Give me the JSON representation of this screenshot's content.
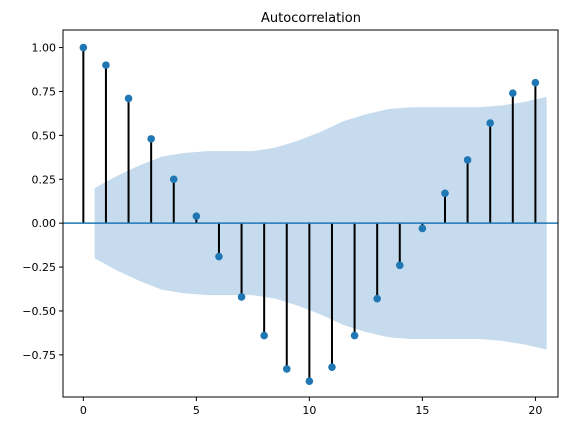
{
  "chart_data": {
    "type": "stem",
    "title": "Autocorrelation",
    "xlabel": "",
    "ylabel": "",
    "xlim": [
      -0.9,
      21.0
    ],
    "ylim": [
      -0.99,
      1.1
    ],
    "x_ticks": [
      0,
      5,
      10,
      15,
      20
    ],
    "y_ticks": [
      1.0,
      0.75,
      0.5,
      0.25,
      0.0,
      -0.25,
      -0.5,
      -0.75
    ],
    "y_tick_labels": [
      "1.00",
      "0.75",
      "0.50",
      "0.25",
      "0.00",
      "−0.25",
      "−0.50",
      "−0.75"
    ],
    "lags": [
      0,
      1,
      2,
      3,
      4,
      5,
      6,
      7,
      8,
      9,
      10,
      11,
      12,
      13,
      14,
      15,
      16,
      17,
      18,
      19,
      20
    ],
    "values": [
      1.0,
      0.9,
      0.71,
      0.48,
      0.25,
      0.04,
      -0.19,
      -0.42,
      -0.64,
      -0.83,
      -0.9,
      -0.82,
      -0.64,
      -0.43,
      -0.24,
      -0.03,
      0.17,
      0.36,
      0.57,
      0.74,
      0.8
    ],
    "confidence_band": {
      "x": [
        0.5,
        1.5,
        2.5,
        3.5,
        4.5,
        5.5,
        6.5,
        7.5,
        8.5,
        9.5,
        10.5,
        11.5,
        12.5,
        13.5,
        14.5,
        15.5,
        16.5,
        17.5,
        18.5,
        19.5,
        20.5
      ],
      "upper": [
        0.2,
        0.27,
        0.33,
        0.38,
        0.4,
        0.41,
        0.41,
        0.41,
        0.43,
        0.47,
        0.52,
        0.58,
        0.62,
        0.65,
        0.66,
        0.66,
        0.66,
        0.66,
        0.67,
        0.69,
        0.72
      ],
      "lower": [
        -0.2,
        -0.27,
        -0.33,
        -0.38,
        -0.4,
        -0.41,
        -0.41,
        -0.41,
        -0.43,
        -0.47,
        -0.52,
        -0.58,
        -0.62,
        -0.65,
        -0.66,
        -0.66,
        -0.66,
        -0.66,
        -0.67,
        -0.69,
        -0.72
      ]
    },
    "grid": false,
    "colors": {
      "marker": "#1f77b4",
      "stem": "#000000",
      "band": "#c6dbee",
      "zero_line": "#1f77b4"
    }
  }
}
